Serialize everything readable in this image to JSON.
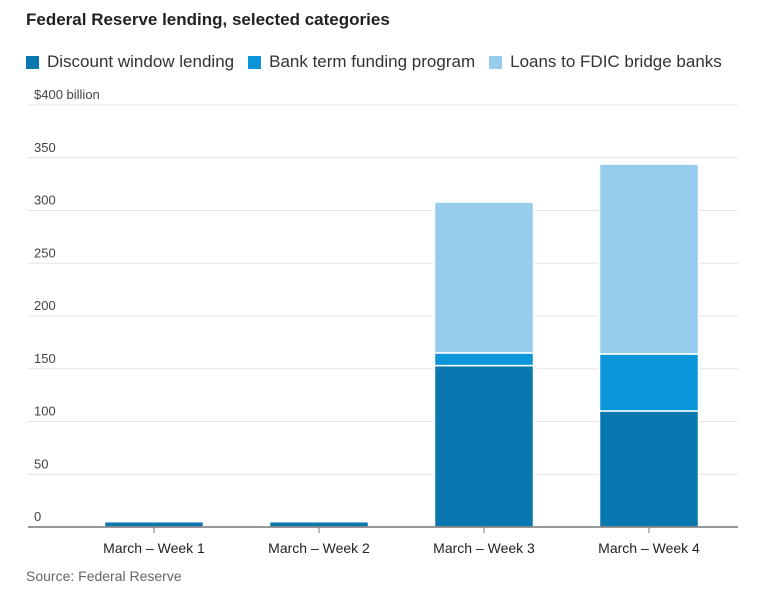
{
  "chart_data": {
    "type": "bar",
    "stacked": true,
    "title": "Federal Reserve lending, selected categories",
    "categories": [
      "March – Week 1",
      "March – Week 2",
      "March – Week 3",
      "March – Week 4"
    ],
    "series": [
      {
        "name": "Discount window lending",
        "color": "#0a78b0",
        "values": [
          5,
          5,
          153,
          110
        ]
      },
      {
        "name": "Bank term funding program",
        "color": "#0a96d8",
        "values": [
          0,
          0,
          12,
          54
        ]
      },
      {
        "name": "Loans to FDIC bridge banks",
        "color": "#96cdef",
        "values": [
          0,
          0,
          143,
          180
        ]
      }
    ],
    "yticks": [
      {
        "value": 0,
        "label": "0"
      },
      {
        "value": 50,
        "label": "50"
      },
      {
        "value": 100,
        "label": "100"
      },
      {
        "value": 150,
        "label": "150"
      },
      {
        "value": 200,
        "label": "200"
      },
      {
        "value": 250,
        "label": "250"
      },
      {
        "value": 300,
        "label": "300"
      },
      {
        "value": 350,
        "label": "350"
      },
      {
        "value": 400,
        "label": "$400 billion"
      }
    ],
    "ylim": [
      0,
      400
    ],
    "xlabel": "",
    "ylabel": "",
    "grid": true,
    "legend_position": "top-left"
  },
  "source": "Source: Federal Reserve"
}
